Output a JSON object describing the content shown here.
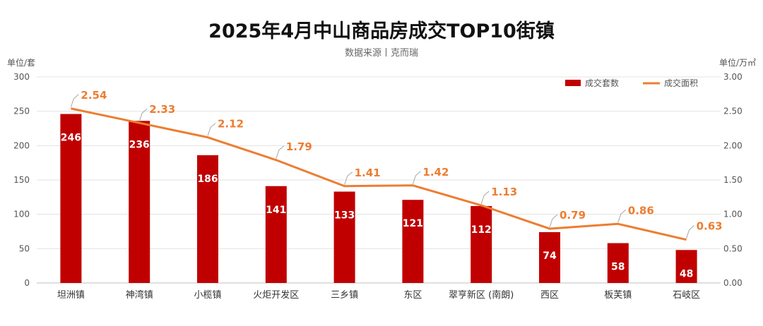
{
  "chart_data": {
    "type": "bar",
    "title": "2025年4月中山商品房成交TOP10街镇",
    "subtitle": "数据来源丨克而瑞",
    "ylabel_left": "单位/套",
    "ylabel_right": "单位/万㎡",
    "categories": [
      "坦洲镇",
      "神湾镇",
      "小榄镇",
      "火炬开发区",
      "三乡镇",
      "东区",
      "翠亨新区 (南朗)",
      "西区",
      "板芙镇",
      "石岐区"
    ],
    "ylim_left": [
      0,
      300
    ],
    "yticks_left": [
      "0",
      "50",
      "100",
      "150",
      "200",
      "250",
      "300"
    ],
    "ylim_right": [
      0,
      3
    ],
    "yticks_right": [
      "0.00",
      "0.50",
      "1.00",
      "1.50",
      "2.00",
      "2.50",
      "3.00"
    ],
    "grid": true,
    "legend_position": "top-right",
    "series": [
      {
        "name": "成交套数",
        "type": "bar",
        "axis": "left",
        "color": "#C00000",
        "values": [
          246,
          236,
          186,
          141,
          133,
          121,
          112,
          74,
          58,
          48
        ]
      },
      {
        "name": "成交面积",
        "type": "line",
        "axis": "right",
        "color": "#ED7D31",
        "values": [
          2.54,
          2.33,
          2.12,
          1.79,
          1.41,
          1.42,
          1.13,
          0.79,
          0.86,
          0.63
        ],
        "labels": [
          "2.54",
          "2.33",
          "2.12",
          "1.79",
          "1.41",
          "1.42",
          "1.13",
          "0.79",
          "0.86",
          "0.63"
        ]
      }
    ]
  }
}
